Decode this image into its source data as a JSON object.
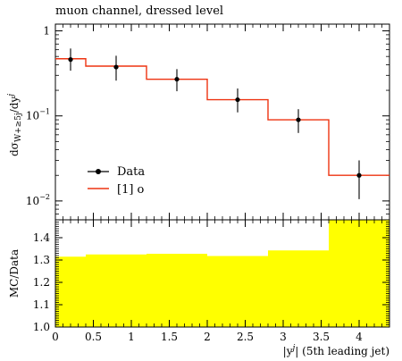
{
  "chart_data": [
    {
      "type": "line",
      "title": "muon channel, dressed level",
      "ylabel": "dσ_{W+≥5j}/dy^j",
      "yscale": "log",
      "ylim": [
        0.006,
        1.2
      ],
      "xlim": [
        0,
        4.4
      ],
      "y_tick_labels": [
        {
          "value": 1,
          "label": "1",
          "sup": ""
        },
        {
          "value": 0.1,
          "label": "10",
          "sup": "−1"
        },
        {
          "value": 0.01,
          "label": "10",
          "sup": "−2"
        }
      ],
      "bin_edges": [
        0,
        0.4,
        1.2,
        2.0,
        2.8,
        3.6,
        4.4
      ],
      "series": [
        {
          "name": "Data",
          "color": "#000000",
          "points": [
            {
              "x": 0.2,
              "y": 0.46,
              "ylow": 0.34,
              "yhigh": 0.62
            },
            {
              "x": 0.8,
              "y": 0.375,
              "ylow": 0.26,
              "yhigh": 0.51
            },
            {
              "x": 1.6,
              "y": 0.27,
              "ylow": 0.195,
              "yhigh": 0.355
            },
            {
              "x": 2.4,
              "y": 0.155,
              "ylow": 0.11,
              "yhigh": 0.21
            },
            {
              "x": 3.2,
              "y": 0.09,
              "ylow": 0.063,
              "yhigh": 0.12
            },
            {
              "x": 4.0,
              "y": 0.02,
              "ylow": 0.0105,
              "yhigh": 0.03
            }
          ]
        },
        {
          "name": "[1] o",
          "color": "#ee3311",
          "values": [
            0.47,
            0.385,
            0.27,
            0.155,
            0.09,
            0.02
          ]
        }
      ],
      "legend": "left"
    },
    {
      "type": "area",
      "ylabel": "MC/Data",
      "xlabel": "|y^j| (5th leading jet)",
      "ylim": [
        1.0,
        1.48
      ],
      "xlim": [
        0,
        4.4
      ],
      "x_ticks": [
        "0",
        "0.5",
        "1",
        "1.5",
        "2",
        "2.5",
        "3",
        "3.5",
        "4"
      ],
      "y_ticks": [
        "1.0",
        "1.1",
        "1.2",
        "1.3",
        "1.4"
      ],
      "bin_edges": [
        0,
        0.4,
        1.2,
        2.0,
        2.8,
        3.6,
        4.4
      ],
      "values": [
        1.315,
        1.325,
        1.328,
        1.318,
        1.343,
        1.48
      ],
      "color": "#ffff00"
    }
  ]
}
